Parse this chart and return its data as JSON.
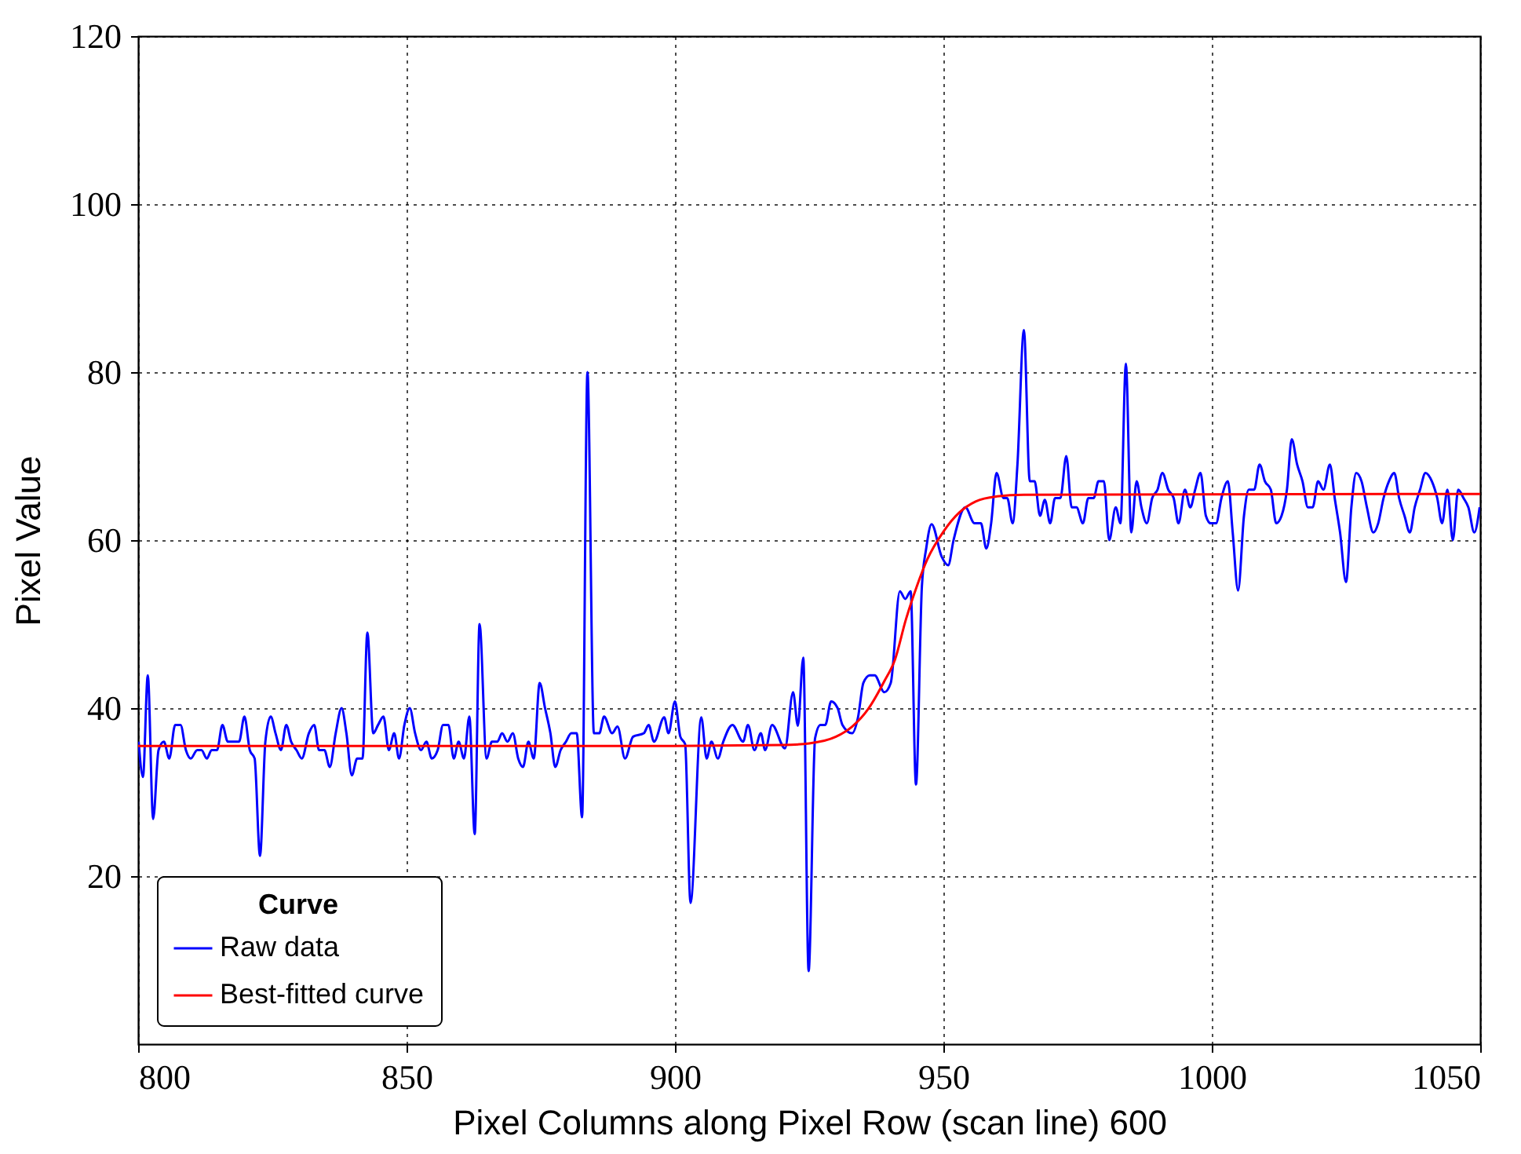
{
  "chart_data": {
    "type": "line",
    "xlabel": "Pixel Columns along Pixel Row (scan line) 600",
    "ylabel": "Pixel Value",
    "legend_title": "Curve",
    "legend": "bottom left",
    "grid": true,
    "xlim": [
      800,
      1050
    ],
    "xticks": [
      800,
      850,
      900,
      950,
      1000,
      1050
    ],
    "ylim": [
      0,
      120
    ],
    "yticks": [
      20,
      40,
      60,
      80,
      100,
      120
    ],
    "series": [
      {
        "name": "Raw data",
        "color": "#0000ff",
        "x": [
          800.1,
          800.9,
          801.8,
          802.8,
          803.8,
          804.8,
          805.8,
          806.9,
          807.9,
          808.9,
          809.8,
          811,
          811.8,
          812.8,
          813.7,
          814.7,
          815.7,
          816.7,
          817.6,
          818.8,
          819.8,
          820.8,
          821.7,
          822.7,
          823.7,
          824.7,
          825.6,
          826.6,
          827.6,
          828.5,
          829.5,
          830.5,
          831.8,
          832.8,
          833.7,
          834.7,
          835.7,
          836.8,
          837.9,
          838.8,
          839.8,
          840.8,
          841.8,
          842.7,
          843.8,
          844.7,
          845.7,
          846.7,
          847.7,
          848.6,
          849.6,
          850.6,
          851.6,
          852.7,
          853.7,
          854.7,
          855.8,
          856.8,
          857.8,
          858.8,
          859.7,
          860.7,
          861.7,
          862.7,
          863.6,
          864.9,
          865.9,
          866.9,
          867.8,
          868.8,
          869.8,
          870.8,
          871.7,
          872.7,
          873.7,
          874.8,
          875.8,
          876.8,
          877.7,
          878.7,
          879.7,
          880.7,
          881.7,
          882.7,
          883.7,
          884.9,
          885.9,
          886.8,
          888.3,
          889.3,
          890.7,
          892.2,
          894.2,
          895.1,
          896.1,
          898,
          898.8,
          900,
          901,
          901.9,
          902.9,
          904.9,
          905.9,
          906.8,
          908,
          909,
          910.7,
          912.7,
          913.6,
          914.8,
          916,
          916.8,
          918.1,
          920.5,
          922,
          922.9,
          923.9,
          924.9,
          926.1,
          927.1,
          928,
          929.1,
          930.3,
          931.2,
          933,
          934.1,
          935.1,
          936.3,
          937.2,
          939,
          940.2,
          941.9,
          942.9,
          943.9,
          944.9,
          946,
          946.8,
          947.8,
          949.7,
          950.9,
          951.9,
          954.1,
          955.8,
          957,
          958,
          958.9,
          959.9,
          961.2,
          961.9,
          962.9,
          963.8,
          965,
          966.1,
          967,
          968,
          968.9,
          969.9,
          970.8,
          971.8,
          972.9,
          973.9,
          974.8,
          976,
          977,
          978,
          978.9,
          979.9,
          980.9,
          982.1,
          983,
          984,
          985,
          986,
          986.9,
          987.9,
          988.9,
          989.9,
          990.8,
          991.9,
          992.9,
          993.8,
          995,
          996,
          996.9,
          997.9,
          998.9,
          999.8,
          1000.8,
          1001.8,
          1003,
          1003.9,
          1004.9,
          1006,
          1006.9,
          1007.9,
          1008.9,
          1009.9,
          1011,
          1012,
          1013,
          1014,
          1014.9,
          1015.9,
          1016.9,
          1017.9,
          1018.8,
          1019.8,
          1020.8,
          1022,
          1022.9,
          1023.9,
          1025,
          1026,
          1026.9,
          1027.9,
          1028.9,
          1030.1,
          1031,
          1032,
          1033,
          1034,
          1034.9,
          1035.9,
          1036.9,
          1037.8,
          1038.8,
          1039.8,
          1041,
          1042,
          1042.9,
          1043.9,
          1044.9,
          1045.9,
          1046.9,
          1047.8,
          1048.9,
          1049.9
        ],
        "values": [
          36,
          31.8,
          43.9,
          26.8,
          35,
          36,
          34,
          38,
          38,
          35,
          34,
          35,
          35,
          34,
          35,
          35,
          38,
          36,
          36,
          36,
          39,
          35,
          34,
          22.4,
          36,
          39,
          37,
          35,
          38,
          36,
          35,
          34,
          37,
          38,
          35,
          35,
          33,
          37,
          40,
          37,
          32,
          34,
          34,
          49,
          37,
          38,
          39,
          35,
          37,
          34,
          38,
          40,
          37,
          35,
          36,
          34,
          35,
          38,
          38,
          34,
          36,
          34,
          39,
          25,
          50,
          34,
          36,
          36,
          37,
          36,
          37,
          34,
          33,
          36,
          34,
          43,
          40,
          37,
          33,
          35,
          36,
          37,
          37,
          27,
          80,
          37,
          37,
          39,
          37,
          37.8,
          34,
          36.6,
          37,
          38,
          36,
          38.9,
          37,
          40.8,
          36.6,
          35.7,
          16.8,
          38.9,
          34,
          36,
          34,
          36,
          38,
          36,
          38,
          35,
          37,
          35,
          38,
          35.2,
          41.9,
          37.9,
          46,
          8.7,
          36.4,
          38,
          38,
          40.8,
          40,
          38,
          37,
          38.9,
          43,
          43.9,
          43.9,
          41.9,
          43,
          53.9,
          53,
          53.9,
          30.9,
          54.5,
          59,
          61.9,
          58,
          57,
          60,
          63.9,
          62,
          62,
          59,
          62,
          68,
          65,
          65,
          62,
          69,
          85,
          67,
          67,
          62.9,
          64.8,
          62,
          65,
          65,
          70,
          63.9,
          63.9,
          62,
          65,
          65,
          67,
          67,
          60,
          63.9,
          62,
          81,
          60.9,
          67,
          63.9,
          62,
          65,
          66,
          68,
          66,
          65,
          62,
          66,
          63.9,
          66,
          68,
          62.9,
          62,
          62,
          65,
          67,
          60.9,
          54,
          62.9,
          66,
          66,
          69,
          67,
          66,
          62,
          62.9,
          66,
          72,
          69,
          67,
          63.9,
          63.9,
          67,
          66,
          69,
          65,
          60.9,
          55,
          63.9,
          68,
          67,
          63.9,
          60.9,
          62,
          65,
          67,
          68,
          65,
          62.9,
          60.9,
          63.9,
          66,
          68,
          67,
          65,
          62,
          66,
          60,
          66,
          65,
          63.9,
          60.9,
          63.9
        ]
      },
      {
        "name": "Best-fitted curve",
        "color": "#ff0000",
        "x": [
          800,
          900,
          920,
          925,
          930,
          933,
          936,
          939,
          941,
          943,
          945,
          947,
          950,
          953,
          956,
          960,
          965,
          1050
        ],
        "values": [
          35.5,
          35.5,
          35.6,
          35.8,
          36.6,
          37.8,
          39.9,
          43.2,
          45.8,
          50.5,
          54.4,
          57.7,
          61,
          63.3,
          64.6,
          65.2,
          65.4,
          65.5
        ]
      }
    ]
  }
}
